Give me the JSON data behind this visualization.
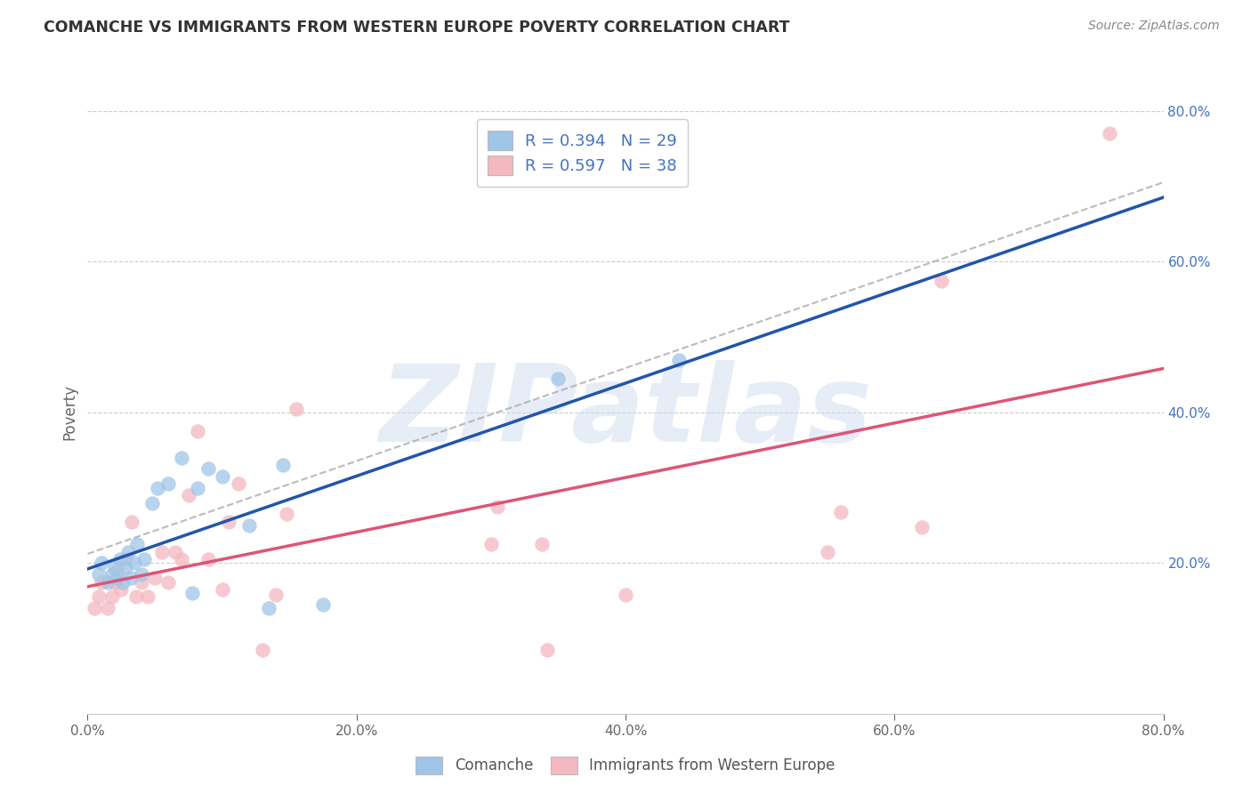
{
  "title": "COMANCHE VS IMMIGRANTS FROM WESTERN EUROPE POVERTY CORRELATION CHART",
  "source": "Source: ZipAtlas.com",
  "ylabel": "Poverty",
  "xlim": [
    0.0,
    0.8
  ],
  "ylim": [
    0.0,
    0.8
  ],
  "xtick_vals": [
    0.0,
    0.2,
    0.4,
    0.6,
    0.8
  ],
  "xtick_labels": [
    "0.0%",
    "20.0%",
    "40.0%",
    "60.0%",
    "80.0%"
  ],
  "ytick_vals": [
    0.2,
    0.4,
    0.6,
    0.8
  ],
  "ytick_labels": [
    "20.0%",
    "40.0%",
    "60.0%",
    "80.0%"
  ],
  "legend_label1": "Comanche",
  "legend_label2": "Immigrants from Western Europe",
  "R1": "0.394",
  "N1": "29",
  "R2": "0.597",
  "N2": "38",
  "color1": "#9fc5e8",
  "color2": "#f4b8c1",
  "line_color1": "#2255aa",
  "line_color2": "#dd5577",
  "line_color_dashed": "#aaaaaa",
  "bg_color": "#ffffff",
  "grid_color": "#cccccc",
  "right_tick_color": "#4472c4",
  "watermark_text": "ZIPatlas",
  "scatter1_x": [
    0.008,
    0.01,
    0.015,
    0.018,
    0.02,
    0.022,
    0.024,
    0.026,
    0.028,
    0.03,
    0.032,
    0.035,
    0.037,
    0.04,
    0.042,
    0.048,
    0.052,
    0.06,
    0.07,
    0.078,
    0.082,
    0.09,
    0.1,
    0.12,
    0.135,
    0.145,
    0.175,
    0.35,
    0.44
  ],
  "scatter1_y": [
    0.185,
    0.2,
    0.175,
    0.185,
    0.195,
    0.18,
    0.205,
    0.175,
    0.195,
    0.215,
    0.18,
    0.2,
    0.225,
    0.185,
    0.205,
    0.28,
    0.3,
    0.305,
    0.34,
    0.16,
    0.3,
    0.325,
    0.315,
    0.25,
    0.14,
    0.33,
    0.145,
    0.445,
    0.47
  ],
  "scatter2_x": [
    0.005,
    0.008,
    0.01,
    0.015,
    0.018,
    0.02,
    0.022,
    0.025,
    0.028,
    0.033,
    0.036,
    0.04,
    0.045,
    0.05,
    0.055,
    0.06,
    0.065,
    0.07,
    0.075,
    0.082,
    0.09,
    0.1,
    0.105,
    0.112,
    0.13,
    0.14,
    0.148,
    0.155,
    0.3,
    0.305,
    0.338,
    0.342,
    0.4,
    0.55,
    0.56,
    0.62,
    0.635,
    0.76
  ],
  "scatter2_y": [
    0.14,
    0.155,
    0.175,
    0.14,
    0.155,
    0.175,
    0.19,
    0.165,
    0.205,
    0.255,
    0.155,
    0.175,
    0.155,
    0.18,
    0.215,
    0.175,
    0.215,
    0.205,
    0.29,
    0.375,
    0.205,
    0.165,
    0.255,
    0.305,
    0.085,
    0.158,
    0.265,
    0.405,
    0.225,
    0.275,
    0.225,
    0.085,
    0.158,
    0.215,
    0.268,
    0.248,
    0.575,
    0.77
  ]
}
